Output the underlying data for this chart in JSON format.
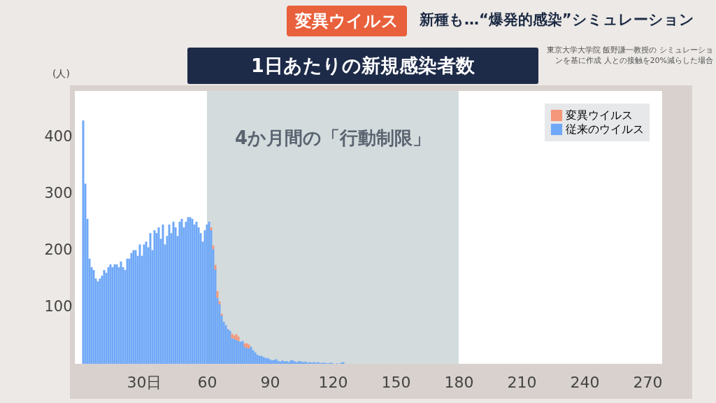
{
  "chart_data": {
    "type": "bar",
    "title": "1日あたりの新規感染者数",
    "subtitle": "新種も…“爆発的感染”シミュレーション",
    "annotations": [
      "変異ウイルス",
      "東京大学大学院 飯野謙一教授の シミュレーションを基に作成 人との接触を20%減らした場合"
    ],
    "ylabel": "(人)",
    "stacked": true,
    "legend": "top right",
    "x": [
      1,
      2,
      3,
      4,
      5,
      6,
      7,
      8,
      9,
      10,
      11,
      12,
      13,
      14,
      15,
      16,
      17,
      18,
      19,
      20,
      21,
      22,
      23,
      24,
      25,
      26,
      27,
      28,
      29,
      30,
      31,
      32,
      33,
      34,
      35,
      36,
      37,
      38,
      39,
      40,
      41,
      42,
      43,
      44,
      45,
      46,
      47,
      48,
      49,
      50,
      51,
      52,
      53,
      54,
      55,
      56,
      57,
      58,
      59,
      60,
      61,
      62,
      63,
      64,
      65,
      66,
      67,
      68,
      69,
      70,
      71,
      72,
      73,
      74,
      75,
      76,
      77,
      78,
      79,
      80,
      81,
      82,
      83,
      84,
      85,
      86,
      87,
      88,
      89,
      90,
      91,
      92,
      93,
      94,
      95,
      96,
      97,
      98,
      99,
      100,
      101,
      102,
      103,
      104,
      105,
      106,
      107,
      108,
      109,
      110,
      111,
      112,
      113,
      114,
      115,
      116,
      117,
      118,
      119,
      120,
      121,
      122,
      123,
      124,
      125
    ],
    "series": [
      {
        "name": "従来のウイルス",
        "color": "#6fa8f7",
        "values": [
          428,
          317,
          255,
          185,
          170,
          165,
          150,
          145,
          150,
          155,
          165,
          160,
          170,
          175,
          170,
          175,
          175,
          170,
          180,
          170,
          165,
          185,
          185,
          195,
          200,
          200,
          190,
          210,
          190,
          210,
          215,
          205,
          230,
          200,
          235,
          230,
          240,
          220,
          245,
          210,
          225,
          245,
          230,
          250,
          240,
          225,
          250,
          255,
          240,
          250,
          258,
          258,
          255,
          245,
          250,
          240,
          230,
          215,
          235,
          245,
          250,
          235,
          202,
          166,
          116,
          105,
          85,
          74,
          68,
          61,
          58,
          45,
          44,
          42,
          40,
          39,
          40,
          30,
          28,
          27,
          30,
          24,
          20,
          16,
          14,
          14,
          12,
          10,
          10,
          8,
          6,
          7,
          8,
          5,
          4,
          6,
          4,
          5,
          3,
          6,
          6,
          4,
          3,
          5,
          4,
          3,
          4,
          2,
          3,
          2,
          3,
          2,
          3,
          1,
          2,
          2,
          1,
          1,
          2,
          1,
          0,
          1,
          0,
          2,
          3
        ]
      },
      {
        "name": "変異ウイルス",
        "color": "#f4977a",
        "values": [
          null,
          null,
          null,
          null,
          null,
          null,
          null,
          null,
          null,
          null,
          null,
          null,
          null,
          null,
          null,
          null,
          null,
          null,
          null,
          null,
          null,
          null,
          null,
          null,
          null,
          null,
          null,
          null,
          null,
          null,
          null,
          null,
          null,
          null,
          null,
          null,
          null,
          null,
          null,
          null,
          null,
          null,
          null,
          null,
          null,
          null,
          null,
          null,
          null,
          null,
          null,
          null,
          null,
          null,
          null,
          null,
          null,
          null,
          null,
          null,
          null,
          5,
          6,
          8,
          12,
          5,
          3,
          null,
          null,
          null,
          null,
          8,
          6,
          10,
          8,
          null,
          null,
          6,
          8,
          7,
          null,
          null,
          null,
          null,
          null,
          null,
          null,
          null,
          null,
          null,
          null,
          null,
          null,
          null,
          null,
          null,
          null,
          null,
          null,
          null,
          null,
          null,
          null,
          null,
          null,
          null,
          null,
          null,
          null,
          null,
          null,
          null,
          null,
          null,
          null,
          null,
          null,
          null,
          null,
          null,
          null,
          null,
          null,
          null,
          null
        ]
      }
    ],
    "xlim": [
      -3,
      277
    ],
    "xticks": [
      {
        "value": 30,
        "label": "30日"
      },
      60,
      90,
      120,
      150,
      180,
      210,
      240,
      270
    ],
    "ylim": [
      0,
      480
    ],
    "yticks": [
      100,
      200,
      300,
      400
    ],
    "bands": [
      {
        "axis": "x",
        "from": 60,
        "to": 180,
        "label": "4か月間の「行動制限」",
        "color": "#d3dbdd"
      }
    ]
  }
}
